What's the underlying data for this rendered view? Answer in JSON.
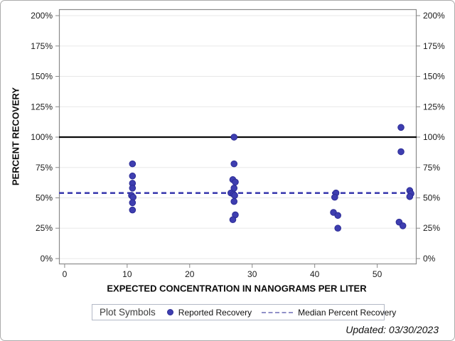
{
  "figure": {
    "footer": "Updated: 03/30/2023"
  },
  "legend": {
    "title": "Plot Symbols",
    "items": [
      {
        "label": "Reported Recovery",
        "swatch": "dot-marker"
      },
      {
        "label": "Median Percent Recovery",
        "swatch": "dashed-line"
      }
    ]
  },
  "colors": {
    "marker_fill": "#3e3eb0",
    "marker_edge": "#2c2c96",
    "median_line": "#3e3eb0",
    "reference_line": "#0a0a0a",
    "gridline": "#e8e8e8",
    "axis": "#8a8a8a",
    "tick_label": "#1a1a1a"
  },
  "chart_data": {
    "type": "scatter",
    "title": "",
    "xlabel": "EXPECTED CONCENTRATION IN NANOGRAMS PER LITER",
    "ylabel": "PERCENT RECOVERY",
    "xlim": [
      -0.9,
      56.3
    ],
    "ylim": [
      -4.7,
      205.3
    ],
    "x_ticks": [
      0,
      10,
      20,
      30,
      40,
      50
    ],
    "x_tick_labels": [
      "0",
      "10",
      "20",
      "30",
      "40",
      "50"
    ],
    "y_ticks": [
      0,
      25,
      50,
      75,
      100,
      125,
      150,
      175,
      200
    ],
    "y_tick_labels": [
      "0%",
      "25%",
      "50%",
      "75%",
      "100%",
      "125%",
      "150%",
      "175%",
      "200%"
    ],
    "grid": "horizontal",
    "right_axis_mirror": true,
    "legend_position": "bottom",
    "reference_line": {
      "value": 100,
      "style": "solid"
    },
    "median_line": {
      "value": 54,
      "style": "dashed",
      "name": "Median Percent Recovery"
    },
    "series": [
      {
        "name": "Reported Recovery",
        "marker": "circle",
        "points": [
          [
            10.85,
            78
          ],
          [
            10.85,
            68
          ],
          [
            10.85,
            62
          ],
          [
            10.85,
            58
          ],
          [
            10.7,
            52
          ],
          [
            10.95,
            50.5
          ],
          [
            10.85,
            46
          ],
          [
            10.85,
            40
          ],
          [
            27.1,
            100
          ],
          [
            27.1,
            78
          ],
          [
            26.9,
            65
          ],
          [
            27.3,
            63
          ],
          [
            27.1,
            58
          ],
          [
            26.6,
            54
          ],
          [
            27.0,
            53
          ],
          [
            27.2,
            52
          ],
          [
            27.1,
            47
          ],
          [
            27.3,
            36
          ],
          [
            26.9,
            32
          ],
          [
            43.4,
            54
          ],
          [
            43.2,
            50.5
          ],
          [
            43.0,
            38
          ],
          [
            43.7,
            35.5
          ],
          [
            43.7,
            25
          ],
          [
            53.8,
            108
          ],
          [
            53.8,
            88
          ],
          [
            55.2,
            56
          ],
          [
            55.4,
            53.5
          ],
          [
            55.2,
            51
          ],
          [
            53.5,
            30
          ],
          [
            54.1,
            27
          ]
        ]
      }
    ]
  }
}
